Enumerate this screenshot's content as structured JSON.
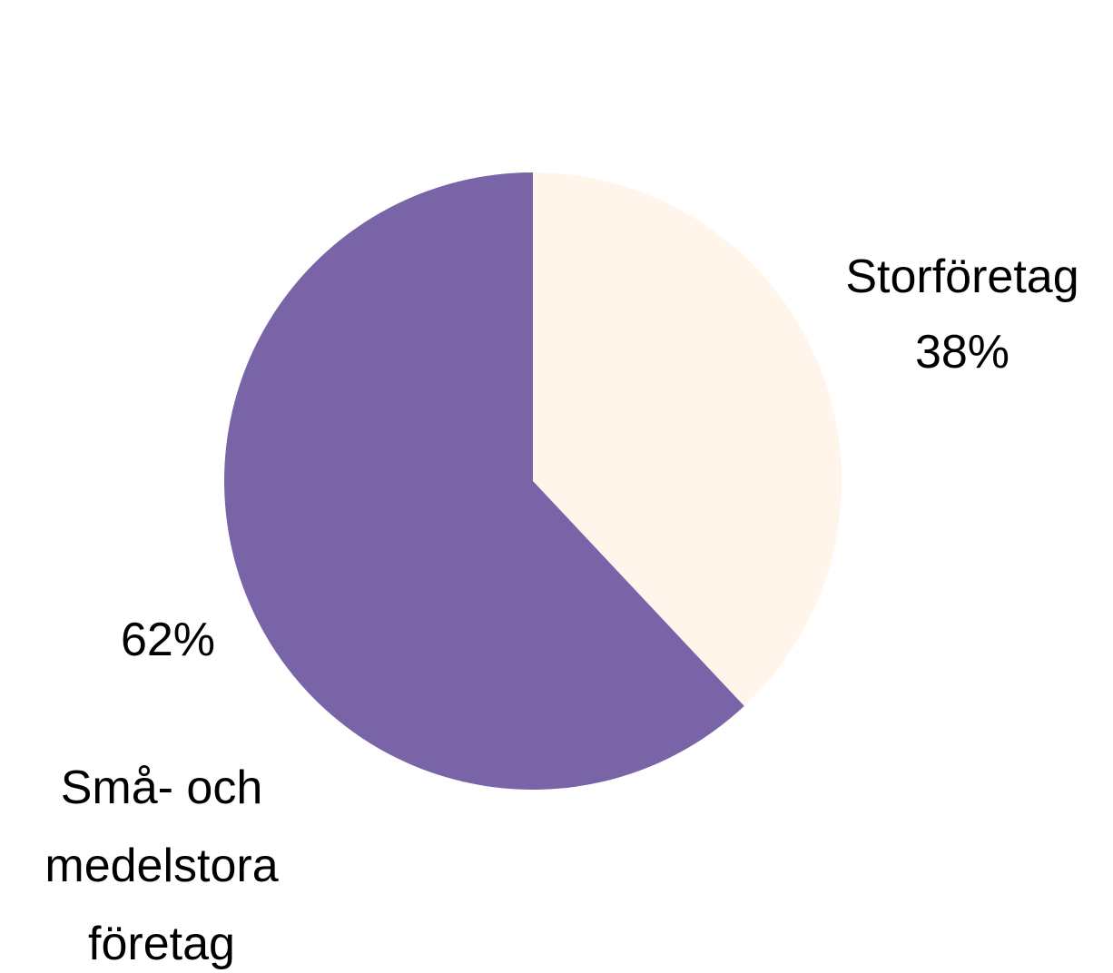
{
  "chart_data": {
    "type": "pie",
    "categories": [
      "Storföretag",
      "Små- och medelstora företag"
    ],
    "values": [
      38,
      62
    ],
    "value_labels": [
      "38%",
      "62%"
    ],
    "colors": [
      "#fff5eb",
      "#7964a8"
    ]
  }
}
